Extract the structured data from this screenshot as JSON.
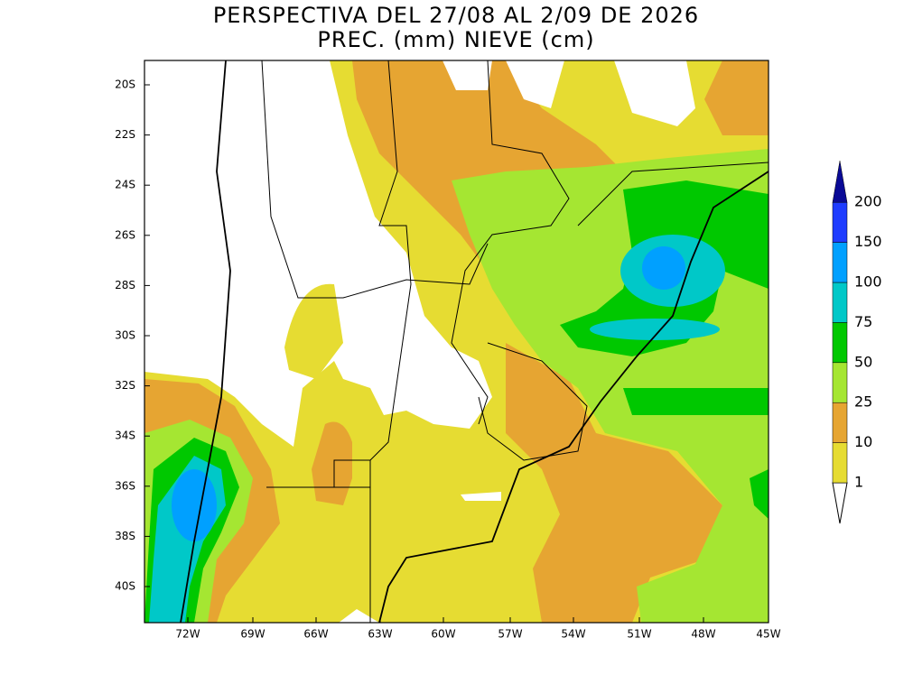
{
  "header": {
    "title": "PERSPECTIVA DEL 27/08 AL 2/09 DE 2026",
    "subtitle": "PREC. (mm) NIEVE (cm)"
  },
  "lat_labels": [
    "20S",
    "22S",
    "24S",
    "26S",
    "28S",
    "30S",
    "32S",
    "34S",
    "36S",
    "38S",
    "40S"
  ],
  "lon_labels": [
    "72W",
    "69W",
    "66W",
    "63W",
    "60W",
    "57W",
    "54W",
    "51W",
    "48W",
    "45W"
  ],
  "legend": {
    "levels": [
      1,
      10,
      25,
      50,
      75,
      100,
      150,
      200
    ],
    "colors": [
      "#e6dc32",
      "#e6a532",
      "#a5e632",
      "#00c800",
      "#00c8c8",
      "#00a0ff",
      "#1e3cff",
      "#0a0a96"
    ]
  }
}
